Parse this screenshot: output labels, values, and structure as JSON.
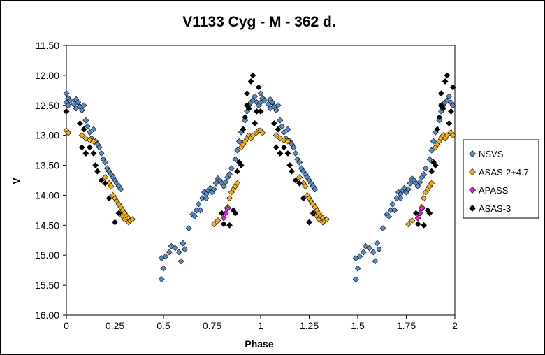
{
  "chart_data": {
    "type": "scatter",
    "title": "V1133 Cyg - M - 362 d.",
    "xlabel": "Phase",
    "ylabel": "V",
    "xlim": [
      0,
      2
    ],
    "ylim": [
      16.0,
      11.5
    ],
    "y_inverted": true,
    "x_ticks": [
      "0",
      "0.25",
      "0.5",
      "0.75",
      "1",
      "1.25",
      "1.5",
      "1.75",
      "2"
    ],
    "y_ticks": [
      "11.50",
      "12.00",
      "12.50",
      "13.00",
      "13.50",
      "14.00",
      "14.50",
      "15.00",
      "15.50",
      "16.00"
    ],
    "grid": false,
    "legend_position": "right",
    "series": [
      {
        "name": "NSVS",
        "color": "#5b8bc2",
        "points": [
          [
            0.0,
            12.3
          ],
          [
            0.01,
            12.38
          ],
          [
            0.0,
            12.45
          ],
          [
            0.01,
            12.5
          ],
          [
            0.02,
            12.42
          ],
          [
            0.04,
            12.48
          ],
          [
            0.05,
            12.55
          ],
          [
            0.05,
            12.4
          ],
          [
            0.06,
            12.45
          ],
          [
            0.07,
            12.52
          ],
          [
            0.08,
            12.58
          ],
          [
            0.09,
            12.5
          ],
          [
            0.1,
            12.75
          ],
          [
            0.11,
            12.85
          ],
          [
            0.12,
            12.95
          ],
          [
            0.13,
            13.05
          ],
          [
            0.14,
            12.9
          ],
          [
            0.15,
            13.1
          ],
          [
            0.16,
            13.15
          ],
          [
            0.17,
            13.2
          ],
          [
            0.18,
            13.3
          ],
          [
            0.19,
            13.4
          ],
          [
            0.2,
            13.45
          ],
          [
            0.21,
            13.55
          ],
          [
            0.22,
            13.6
          ],
          [
            0.23,
            13.65
          ],
          [
            0.24,
            13.7
          ],
          [
            0.25,
            13.75
          ],
          [
            0.26,
            13.8
          ],
          [
            0.27,
            13.85
          ],
          [
            0.28,
            13.9
          ],
          [
            0.49,
            15.4
          ],
          [
            0.49,
            15.05
          ],
          [
            0.5,
            15.22
          ],
          [
            0.51,
            15.02
          ],
          [
            0.53,
            14.95
          ],
          [
            0.54,
            14.85
          ],
          [
            0.56,
            14.88
          ],
          [
            0.58,
            14.95
          ],
          [
            0.59,
            15.1
          ],
          [
            0.6,
            14.8
          ],
          [
            0.61,
            14.9
          ],
          [
            0.63,
            14.55
          ],
          [
            0.65,
            14.32
          ],
          [
            0.66,
            14.35
          ],
          [
            0.67,
            14.25
          ],
          [
            0.68,
            14.15
          ],
          [
            0.69,
            14.25
          ],
          [
            0.7,
            14.05
          ],
          [
            0.71,
            13.95
          ],
          [
            0.72,
            13.98
          ],
          [
            0.72,
            14.05
          ],
          [
            0.73,
            13.92
          ],
          [
            0.74,
            13.88
          ],
          [
            0.75,
            13.95
          ],
          [
            0.76,
            13.9
          ],
          [
            0.77,
            13.8
          ],
          [
            0.78,
            13.72
          ],
          [
            0.79,
            13.75
          ],
          [
            0.8,
            13.8
          ],
          [
            0.81,
            13.85
          ],
          [
            0.82,
            13.78
          ],
          [
            0.83,
            13.7
          ],
          [
            0.84,
            13.65
          ],
          [
            0.85,
            13.55
          ],
          [
            0.87,
            13.4
          ],
          [
            0.88,
            13.25
          ],
          [
            0.89,
            13.1
          ],
          [
            0.9,
            12.95
          ],
          [
            0.91,
            12.9
          ],
          [
            0.92,
            12.75
          ],
          [
            0.93,
            12.6
          ],
          [
            0.94,
            12.5
          ],
          [
            0.95,
            12.45
          ],
          [
            0.96,
            12.42
          ],
          [
            0.97,
            12.35
          ],
          [
            0.98,
            12.45
          ],
          [
            0.99,
            12.5
          ],
          [
            1.0,
            12.45
          ],
          [
            1.0,
            12.3
          ],
          [
            1.01,
            12.38
          ],
          [
            1.02,
            12.42
          ],
          [
            1.04,
            12.48
          ],
          [
            1.05,
            12.55
          ],
          [
            1.05,
            12.4
          ],
          [
            1.06,
            12.45
          ],
          [
            1.07,
            12.52
          ],
          [
            1.08,
            12.58
          ],
          [
            1.09,
            12.5
          ],
          [
            1.1,
            12.75
          ],
          [
            1.11,
            12.85
          ],
          [
            1.12,
            12.95
          ],
          [
            1.13,
            13.05
          ],
          [
            1.14,
            12.9
          ],
          [
            1.15,
            13.1
          ],
          [
            1.16,
            13.15
          ],
          [
            1.17,
            13.2
          ],
          [
            1.18,
            13.3
          ],
          [
            1.19,
            13.4
          ],
          [
            1.2,
            13.45
          ],
          [
            1.21,
            13.55
          ],
          [
            1.22,
            13.6
          ],
          [
            1.23,
            13.65
          ],
          [
            1.24,
            13.7
          ],
          [
            1.25,
            13.75
          ],
          [
            1.26,
            13.8
          ],
          [
            1.27,
            13.85
          ],
          [
            1.28,
            13.9
          ],
          [
            1.49,
            15.4
          ],
          [
            1.49,
            15.05
          ],
          [
            1.5,
            15.22
          ],
          [
            1.51,
            15.02
          ],
          [
            1.53,
            14.95
          ],
          [
            1.54,
            14.85
          ],
          [
            1.56,
            14.88
          ],
          [
            1.58,
            14.95
          ],
          [
            1.59,
            15.1
          ],
          [
            1.6,
            14.8
          ],
          [
            1.61,
            14.9
          ],
          [
            1.63,
            14.55
          ],
          [
            1.65,
            14.32
          ],
          [
            1.66,
            14.35
          ],
          [
            1.67,
            14.25
          ],
          [
            1.68,
            14.15
          ],
          [
            1.69,
            14.25
          ],
          [
            1.7,
            14.05
          ],
          [
            1.71,
            13.95
          ],
          [
            1.72,
            13.98
          ],
          [
            1.72,
            14.05
          ],
          [
            1.73,
            13.92
          ],
          [
            1.74,
            13.88
          ],
          [
            1.75,
            13.95
          ],
          [
            1.76,
            13.9
          ],
          [
            1.77,
            13.8
          ],
          [
            1.78,
            13.72
          ],
          [
            1.79,
            13.75
          ],
          [
            1.8,
            13.8
          ],
          [
            1.81,
            13.85
          ],
          [
            1.82,
            13.78
          ],
          [
            1.83,
            13.7
          ],
          [
            1.84,
            13.65
          ],
          [
            1.85,
            13.55
          ],
          [
            1.87,
            13.4
          ],
          [
            1.88,
            13.25
          ],
          [
            1.89,
            13.1
          ],
          [
            1.9,
            12.95
          ],
          [
            1.91,
            12.9
          ],
          [
            1.92,
            12.75
          ],
          [
            1.93,
            12.6
          ],
          [
            1.94,
            12.5
          ],
          [
            1.95,
            12.45
          ],
          [
            1.96,
            12.42
          ],
          [
            1.97,
            12.35
          ],
          [
            1.98,
            12.45
          ],
          [
            1.99,
            12.5
          ]
        ]
      },
      {
        "name": "ASAS-2+4.7",
        "color": "#f2b01e",
        "points": [
          [
            0.0,
            12.92
          ],
          [
            0.01,
            12.96
          ],
          [
            0.08,
            13.0
          ],
          [
            0.1,
            13.05
          ],
          [
            0.12,
            13.08
          ],
          [
            0.14,
            13.1
          ],
          [
            0.2,
            13.7
          ],
          [
            0.22,
            13.8
          ],
          [
            0.23,
            13.85
          ],
          [
            0.24,
            14.0
          ],
          [
            0.25,
            14.05
          ],
          [
            0.26,
            14.1
          ],
          [
            0.27,
            14.15
          ],
          [
            0.28,
            14.2
          ],
          [
            0.28,
            14.3
          ],
          [
            0.29,
            14.25
          ],
          [
            0.29,
            14.35
          ],
          [
            0.3,
            14.4
          ],
          [
            0.3,
            14.3
          ],
          [
            0.31,
            14.35
          ],
          [
            0.32,
            14.45
          ],
          [
            0.32,
            14.38
          ],
          [
            0.33,
            14.42
          ],
          [
            0.34,
            14.4
          ],
          [
            0.76,
            14.48
          ],
          [
            0.78,
            14.42
          ],
          [
            0.83,
            14.2
          ],
          [
            0.84,
            14.05
          ],
          [
            0.85,
            13.95
          ],
          [
            0.86,
            13.9
          ],
          [
            0.87,
            13.85
          ],
          [
            0.88,
            13.8
          ],
          [
            0.9,
            13.2
          ],
          [
            0.91,
            13.15
          ],
          [
            0.92,
            13.1
          ],
          [
            0.93,
            13.05
          ],
          [
            0.94,
            13.0
          ],
          [
            0.95,
            13.05
          ],
          [
            0.96,
            13.0
          ],
          [
            0.98,
            12.95
          ],
          [
            0.99,
            12.92
          ],
          [
            1.0,
            12.92
          ],
          [
            1.01,
            12.96
          ],
          [
            1.08,
            13.0
          ],
          [
            1.1,
            13.05
          ],
          [
            1.12,
            13.08
          ],
          [
            1.14,
            13.1
          ],
          [
            1.2,
            13.7
          ],
          [
            1.22,
            13.8
          ],
          [
            1.23,
            13.85
          ],
          [
            1.24,
            14.0
          ],
          [
            1.25,
            14.05
          ],
          [
            1.26,
            14.1
          ],
          [
            1.27,
            14.15
          ],
          [
            1.28,
            14.2
          ],
          [
            1.28,
            14.3
          ],
          [
            1.29,
            14.25
          ],
          [
            1.29,
            14.35
          ],
          [
            1.3,
            14.4
          ],
          [
            1.3,
            14.3
          ],
          [
            1.31,
            14.35
          ],
          [
            1.32,
            14.45
          ],
          [
            1.32,
            14.38
          ],
          [
            1.33,
            14.42
          ],
          [
            1.34,
            14.4
          ],
          [
            1.76,
            14.48
          ],
          [
            1.78,
            14.42
          ],
          [
            1.83,
            14.2
          ],
          [
            1.84,
            14.05
          ],
          [
            1.85,
            13.95
          ],
          [
            1.86,
            13.9
          ],
          [
            1.87,
            13.85
          ],
          [
            1.88,
            13.8
          ],
          [
            1.9,
            13.2
          ],
          [
            1.91,
            13.15
          ],
          [
            1.92,
            13.1
          ],
          [
            1.93,
            13.05
          ],
          [
            1.94,
            13.0
          ],
          [
            1.95,
            13.05
          ],
          [
            1.96,
            13.0
          ],
          [
            1.98,
            12.95
          ],
          [
            1.99,
            13.0
          ]
        ]
      },
      {
        "name": "APASS",
        "color": "#e020e0",
        "points": [
          [
            0.81,
            14.38
          ],
          [
            0.82,
            14.3
          ],
          [
            0.83,
            14.22
          ],
          [
            1.81,
            14.38
          ],
          [
            1.82,
            14.3
          ],
          [
            1.83,
            14.22
          ]
        ]
      },
      {
        "name": "ASAS-3",
        "color": "#000000",
        "points": [
          [
            0.0,
            12.6
          ],
          [
            0.07,
            12.8
          ],
          [
            0.08,
            13.2
          ],
          [
            0.09,
            12.9
          ],
          [
            0.1,
            13.3
          ],
          [
            0.12,
            13.2
          ],
          [
            0.14,
            13.3
          ],
          [
            0.15,
            13.5
          ],
          [
            0.16,
            13.6
          ],
          [
            0.18,
            13.75
          ],
          [
            0.2,
            13.8
          ],
          [
            0.22,
            14.05
          ],
          [
            0.25,
            14.45
          ],
          [
            0.27,
            14.3
          ],
          [
            0.8,
            14.3
          ],
          [
            0.81,
            14.48
          ],
          [
            0.84,
            14.5
          ],
          [
            0.86,
            14.25
          ],
          [
            0.87,
            14.3
          ],
          [
            0.88,
            13.6
          ],
          [
            0.89,
            13.45
          ],
          [
            0.9,
            13.5
          ],
          [
            0.91,
            12.9
          ],
          [
            0.92,
            12.7
          ],
          [
            0.93,
            12.5
          ],
          [
            0.93,
            12.3
          ],
          [
            0.94,
            12.55
          ],
          [
            0.95,
            12.1
          ],
          [
            0.96,
            12.0
          ],
          [
            0.97,
            12.8
          ],
          [
            0.98,
            12.6
          ],
          [
            0.99,
            12.2
          ],
          [
            1.0,
            12.6
          ],
          [
            1.07,
            12.8
          ],
          [
            1.08,
            13.2
          ],
          [
            1.09,
            12.9
          ],
          [
            1.1,
            13.3
          ],
          [
            1.12,
            13.2
          ],
          [
            1.14,
            13.3
          ],
          [
            1.15,
            13.5
          ],
          [
            1.16,
            13.6
          ],
          [
            1.18,
            13.75
          ],
          [
            1.2,
            13.8
          ],
          [
            1.22,
            14.05
          ],
          [
            1.25,
            14.45
          ],
          [
            1.27,
            14.3
          ],
          [
            1.8,
            14.3
          ],
          [
            1.81,
            14.48
          ],
          [
            1.84,
            14.5
          ],
          [
            1.86,
            14.25
          ],
          [
            1.87,
            14.3
          ],
          [
            1.88,
            13.6
          ],
          [
            1.89,
            13.45
          ],
          [
            1.9,
            13.5
          ],
          [
            1.91,
            12.9
          ],
          [
            1.92,
            12.7
          ],
          [
            1.93,
            12.5
          ],
          [
            1.93,
            12.3
          ],
          [
            1.94,
            12.55
          ],
          [
            1.95,
            12.1
          ],
          [
            1.96,
            12.0
          ],
          [
            1.97,
            12.8
          ],
          [
            1.98,
            12.6
          ],
          [
            1.99,
            12.2
          ]
        ]
      }
    ]
  }
}
